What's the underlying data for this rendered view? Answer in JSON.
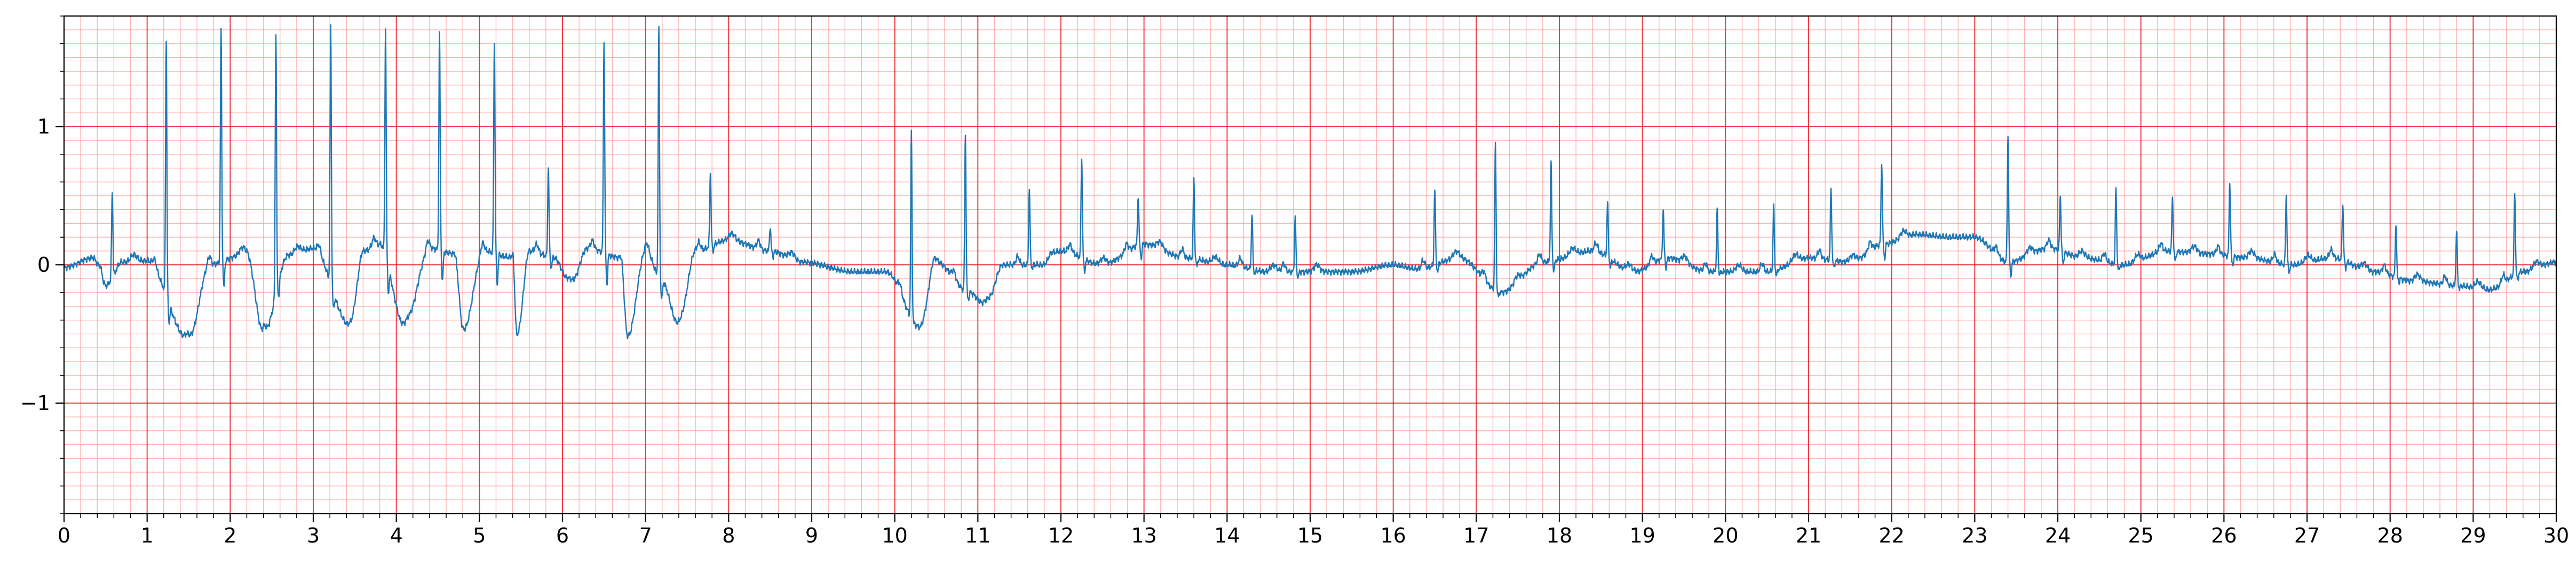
{
  "chart_data": {
    "type": "line",
    "title": "",
    "xlabel": "",
    "ylabel": "",
    "xlim": [
      0,
      30
    ],
    "ylim": [
      -1.8,
      1.8
    ],
    "x_ticks": [
      0,
      1,
      2,
      3,
      4,
      5,
      6,
      7,
      8,
      9,
      10,
      11,
      12,
      13,
      14,
      15,
      16,
      17,
      18,
      19,
      20,
      21,
      22,
      23,
      24,
      25,
      26,
      27,
      28,
      29,
      30
    ],
    "x_tick_labels": [
      "0",
      "1",
      "2",
      "3",
      "4",
      "5",
      "6",
      "7",
      "8",
      "9",
      "10",
      "11",
      "12",
      "13",
      "14",
      "15",
      "16",
      "17",
      "18",
      "19",
      "20",
      "21",
      "22",
      "23",
      "24",
      "25",
      "26",
      "27",
      "28",
      "29",
      "30"
    ],
    "y_ticks": [
      -1,
      0,
      1
    ],
    "y_tick_labels": [
      "−1",
      "0",
      "1"
    ],
    "grid": {
      "major": true,
      "minor": true,
      "major_color": "#e8000b",
      "minor_color": "#ff9a9a"
    },
    "line_color": "#1f77b4",
    "baseline": [
      [
        0,
        -0.02
      ],
      [
        0.35,
        0.05
      ],
      [
        0.5,
        -0.15
      ],
      [
        0.7,
        0.02
      ],
      [
        1.0,
        0.03
      ],
      [
        1.5,
        -0.55
      ],
      [
        1.75,
        0.0
      ],
      [
        2.2,
        0.08
      ],
      [
        2.4,
        -0.5
      ],
      [
        2.7,
        0.07
      ],
      [
        3.0,
        0.12
      ],
      [
        3.45,
        -0.45
      ],
      [
        3.6,
        0.1
      ],
      [
        3.8,
        0.15
      ],
      [
        4.1,
        -0.45
      ],
      [
        4.4,
        0.12
      ],
      [
        4.7,
        0.08
      ],
      [
        4.8,
        -0.5
      ],
      [
        5.05,
        0.1
      ],
      [
        5.4,
        0.05
      ],
      [
        5.45,
        -0.55
      ],
      [
        5.6,
        0.1
      ],
      [
        5.9,
        0.05
      ],
      [
        6.1,
        -0.15
      ],
      [
        6.3,
        0.12
      ],
      [
        6.7,
        0.05
      ],
      [
        6.78,
        -0.55
      ],
      [
        7.0,
        0.1
      ],
      [
        7.2,
        -0.12
      ],
      [
        7.4,
        -0.45
      ],
      [
        7.6,
        0.1
      ],
      [
        8.0,
        0.18
      ],
      [
        8.5,
        0.1
      ],
      [
        8.9,
        0.02
      ],
      [
        9.5,
        -0.05
      ],
      [
        9.9,
        -0.05
      ],
      [
        10.3,
        -0.45
      ],
      [
        10.5,
        0.02
      ],
      [
        10.9,
        -0.2
      ],
      [
        11.1,
        -0.3
      ],
      [
        11.3,
        0.0
      ],
      [
        11.8,
        0.0
      ],
      [
        12.0,
        0.1
      ],
      [
        12.5,
        0.0
      ],
      [
        13.0,
        0.15
      ],
      [
        13.5,
        0.05
      ],
      [
        14.0,
        0.0
      ],
      [
        14.5,
        -0.05
      ],
      [
        15.0,
        -0.05
      ],
      [
        15.5,
        -0.05
      ],
      [
        16.0,
        0.0
      ],
      [
        16.3,
        -0.03
      ],
      [
        16.8,
        0.05
      ],
      [
        17.3,
        -0.2
      ],
      [
        17.8,
        0.02
      ],
      [
        18.4,
        0.1
      ],
      [
        18.9,
        -0.05
      ],
      [
        19.3,
        0.05
      ],
      [
        19.8,
        -0.05
      ],
      [
        20.5,
        -0.05
      ],
      [
        21.0,
        0.05
      ],
      [
        21.5,
        0.02
      ],
      [
        21.9,
        0.15
      ],
      [
        22.3,
        0.22
      ],
      [
        22.7,
        0.2
      ],
      [
        23.0,
        0.2
      ],
      [
        23.4,
        0.02
      ],
      [
        23.9,
        0.12
      ],
      [
        24.3,
        0.05
      ],
      [
        24.8,
        0.0
      ],
      [
        25.3,
        0.1
      ],
      [
        25.8,
        0.08
      ],
      [
        26.3,
        0.05
      ],
      [
        26.8,
        0.0
      ],
      [
        27.3,
        0.05
      ],
      [
        27.8,
        -0.05
      ],
      [
        28.3,
        -0.12
      ],
      [
        28.8,
        -0.15
      ],
      [
        29.2,
        -0.18
      ],
      [
        29.6,
        -0.05
      ],
      [
        30,
        0.02
      ]
    ],
    "beats": [
      {
        "x": 0.58,
        "peak": 0.52,
        "trough": -0.15
      },
      {
        "x": 1.23,
        "peak": 1.62,
        "trough": -0.6
      },
      {
        "x": 1.89,
        "peak": 1.7,
        "trough": -0.52
      },
      {
        "x": 2.55,
        "peak": 1.68,
        "trough": -0.52
      },
      {
        "x": 3.21,
        "peak": 1.72,
        "trough": -0.48
      },
      {
        "x": 3.87,
        "peak": 1.7,
        "trough": -0.45
      },
      {
        "x": 4.52,
        "peak": 1.67,
        "trough": -0.52
      },
      {
        "x": 5.18,
        "peak": 1.6,
        "trough": -0.55
      },
      {
        "x": 5.83,
        "peak": 0.7,
        "trough": -0.15
      },
      {
        "x": 6.5,
        "peak": 1.62,
        "trough": -0.55
      },
      {
        "x": 7.16,
        "peak": 1.7,
        "trough": -0.48
      },
      {
        "x": 7.78,
        "peak": 0.67,
        "trough": 0.02
      },
      {
        "x": 8.5,
        "peak": 0.28,
        "trough": 0.0
      },
      {
        "x": 10.2,
        "peak": 0.95,
        "trough": -0.4
      },
      {
        "x": 10.85,
        "peak": 0.94,
        "trough": -0.35
      },
      {
        "x": 11.62,
        "peak": 0.56,
        "trough": -0.05
      },
      {
        "x": 12.25,
        "peak": 0.78,
        "trough": -0.2
      },
      {
        "x": 12.93,
        "peak": 0.5,
        "trough": -0.15
      },
      {
        "x": 13.6,
        "peak": 0.63,
        "trough": -0.1
      },
      {
        "x": 14.3,
        "peak": 0.37,
        "trough": -0.1
      },
      {
        "x": 14.82,
        "peak": 0.35,
        "trough": -0.15
      },
      {
        "x": 16.5,
        "peak": 0.55,
        "trough": -0.15
      },
      {
        "x": 17.23,
        "peak": 0.88,
        "trough": -0.28
      },
      {
        "x": 17.9,
        "peak": 0.73,
        "trough": -0.18
      },
      {
        "x": 18.58,
        "peak": 0.45,
        "trough": -0.1
      },
      {
        "x": 19.25,
        "peak": 0.4,
        "trough": -0.15
      },
      {
        "x": 19.9,
        "peak": 0.4,
        "trough": -0.1
      },
      {
        "x": 20.58,
        "peak": 0.42,
        "trough": -0.15
      },
      {
        "x": 21.27,
        "peak": 0.55,
        "trough": -0.1
      },
      {
        "x": 21.88,
        "peak": 0.75,
        "trough": -0.15
      },
      {
        "x": 23.4,
        "peak": 0.93,
        "trough": -0.25
      },
      {
        "x": 24.03,
        "peak": 0.5,
        "trough": -0.15
      },
      {
        "x": 24.7,
        "peak": 0.55,
        "trough": -0.12
      },
      {
        "x": 25.38,
        "peak": 0.47,
        "trough": -0.1
      },
      {
        "x": 26.07,
        "peak": 0.6,
        "trough": -0.12
      },
      {
        "x": 26.75,
        "peak": 0.5,
        "trough": -0.15
      },
      {
        "x": 27.43,
        "peak": 0.45,
        "trough": -0.1
      },
      {
        "x": 28.07,
        "peak": 0.3,
        "trough": -0.18
      },
      {
        "x": 28.8,
        "peak": 0.25,
        "trough": -0.2
      },
      {
        "x": 29.5,
        "peak": 0.52,
        "trough": -0.22
      }
    ]
  }
}
